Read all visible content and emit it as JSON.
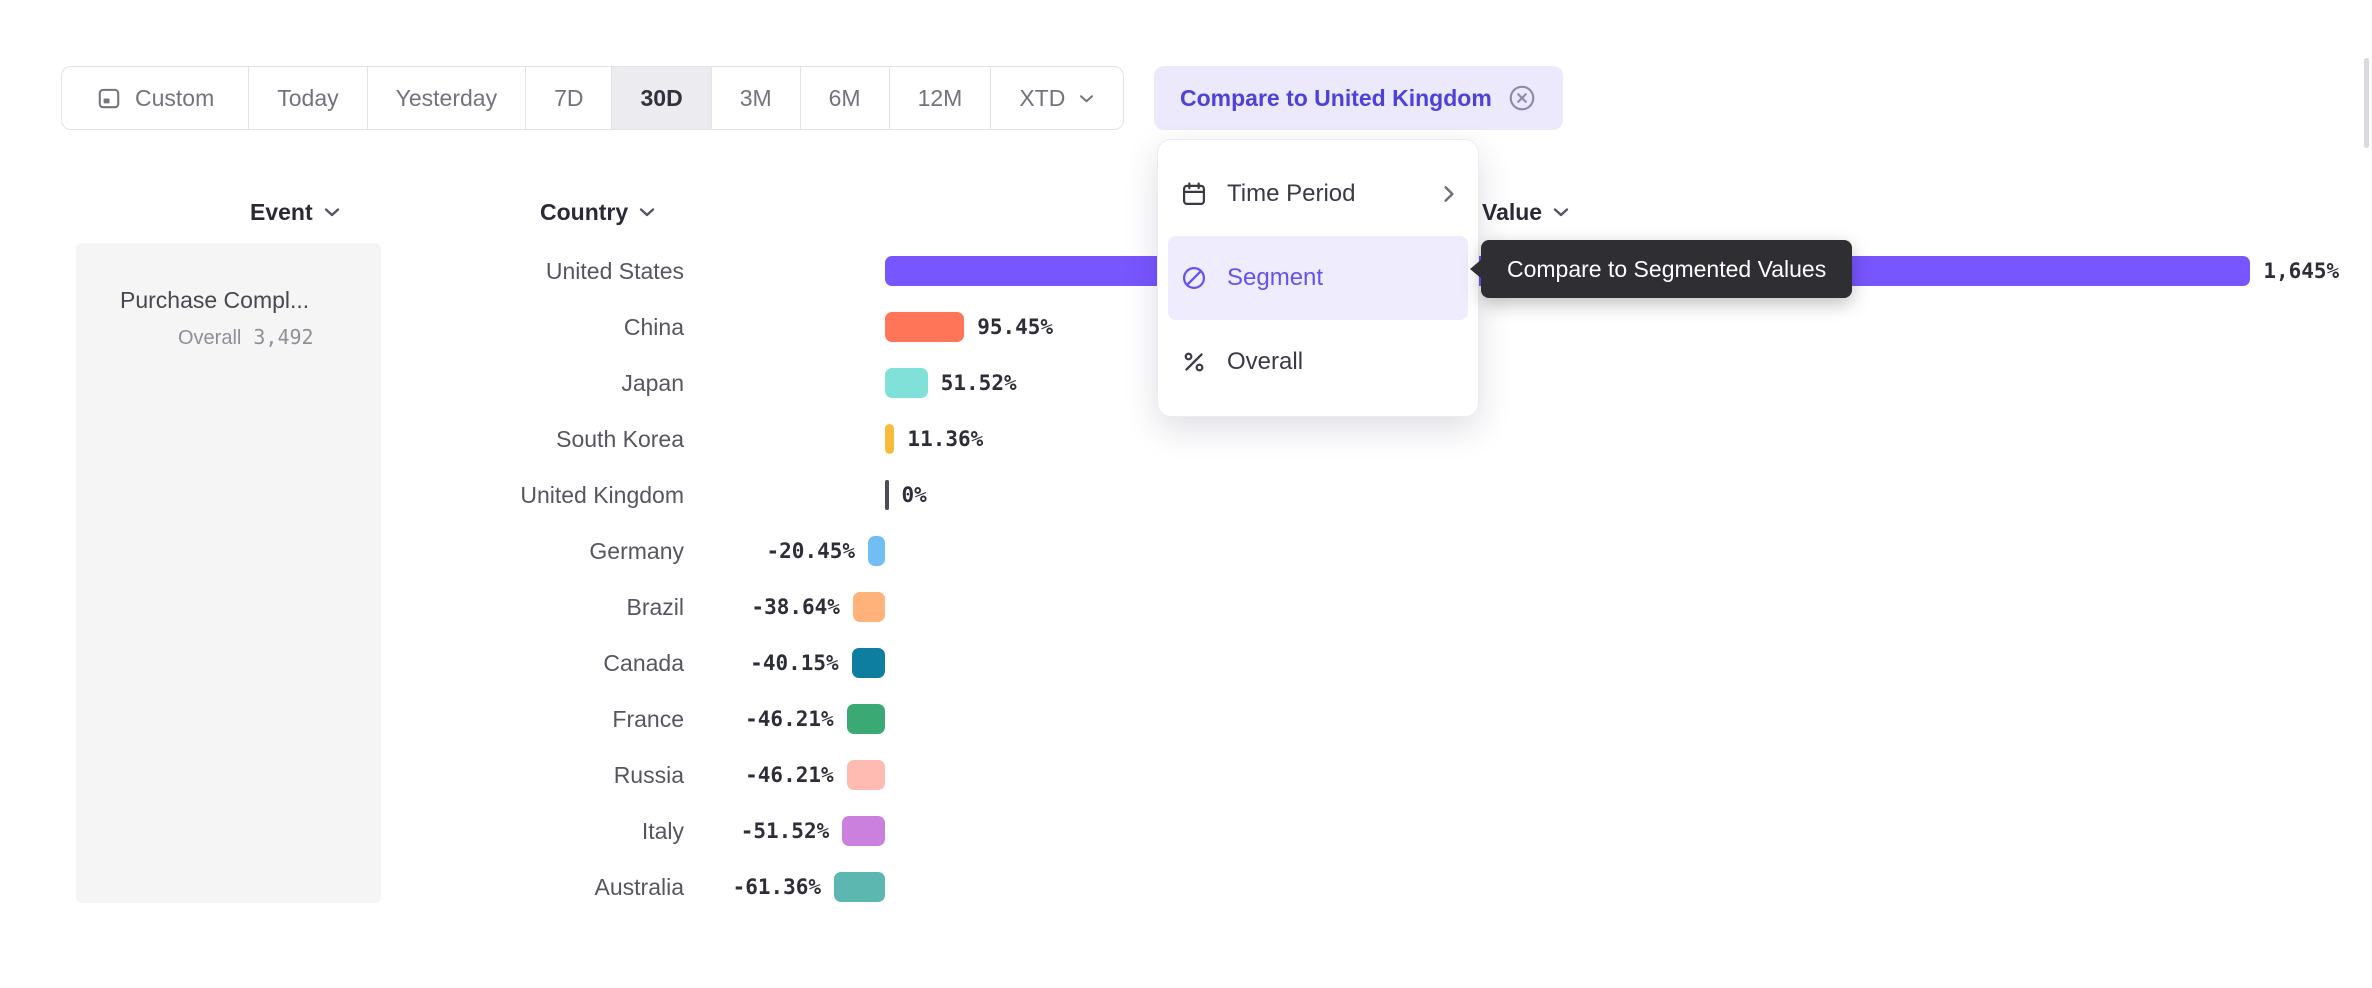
{
  "toolbar": {
    "custom": {
      "label": "Custom"
    },
    "presets": [
      {
        "label": "Today",
        "active": false
      },
      {
        "label": "Yesterday",
        "active": false
      },
      {
        "label": "7D",
        "active": false
      },
      {
        "label": "30D",
        "active": true
      },
      {
        "label": "3M",
        "active": false
      },
      {
        "label": "6M",
        "active": false
      },
      {
        "label": "12M",
        "active": false
      }
    ],
    "xtd": {
      "label": "XTD"
    },
    "compare_chip": {
      "label": "Compare to United Kingdom",
      "bg": "#ebe9fb",
      "accent": "#4e41d9"
    }
  },
  "compare_menu": {
    "items": [
      {
        "label": "Time Period",
        "icon": "calendar-icon",
        "has_submenu": true,
        "active": false
      },
      {
        "label": "Segment",
        "icon": "segment-icon",
        "has_submenu": false,
        "active": true
      },
      {
        "label": "Overall",
        "icon": "percent-icon",
        "has_submenu": false,
        "active": false
      }
    ]
  },
  "tooltip": {
    "text": "Compare to Segmented Values"
  },
  "table": {
    "columns": [
      {
        "label": "Event"
      },
      {
        "label": "Country"
      },
      {
        "label": "Value"
      }
    ],
    "event_cell": {
      "title": "Purchase Compl...",
      "overall_label": "Overall",
      "overall_value": "3,492"
    }
  },
  "chart_data": {
    "type": "bar",
    "orientation": "horizontal",
    "value_unit": "%",
    "zero_baseline": true,
    "grid": false,
    "categories": [
      "United States",
      "China",
      "Japan",
      "South Korea",
      "United Kingdom",
      "Germany",
      "Brazil",
      "Canada",
      "France",
      "Russia",
      "Italy",
      "Australia"
    ],
    "values": [
      1645,
      95.45,
      51.52,
      11.36,
      0,
      -20.45,
      -38.64,
      -40.15,
      -46.21,
      -46.21,
      -51.52,
      -61.36
    ],
    "value_labels": [
      "1,645%",
      "95.45%",
      "51.52%",
      "11.36%",
      "0%",
      "-20.45%",
      "-38.64%",
      "-40.15%",
      "-46.21%",
      "-46.21%",
      "-51.52%",
      "-61.36%"
    ],
    "colors": [
      "#7856FF",
      "#FF7557",
      "#80E1D9",
      "#F8BC3B",
      "#4d4d58",
      "#72BEF4",
      "#FFB27A",
      "#0D7EA0",
      "#3BA974",
      "#FEBBB2",
      "#CA80DC",
      "#5BB7AF"
    ],
    "xlim": [
      -100,
      1700
    ]
  }
}
